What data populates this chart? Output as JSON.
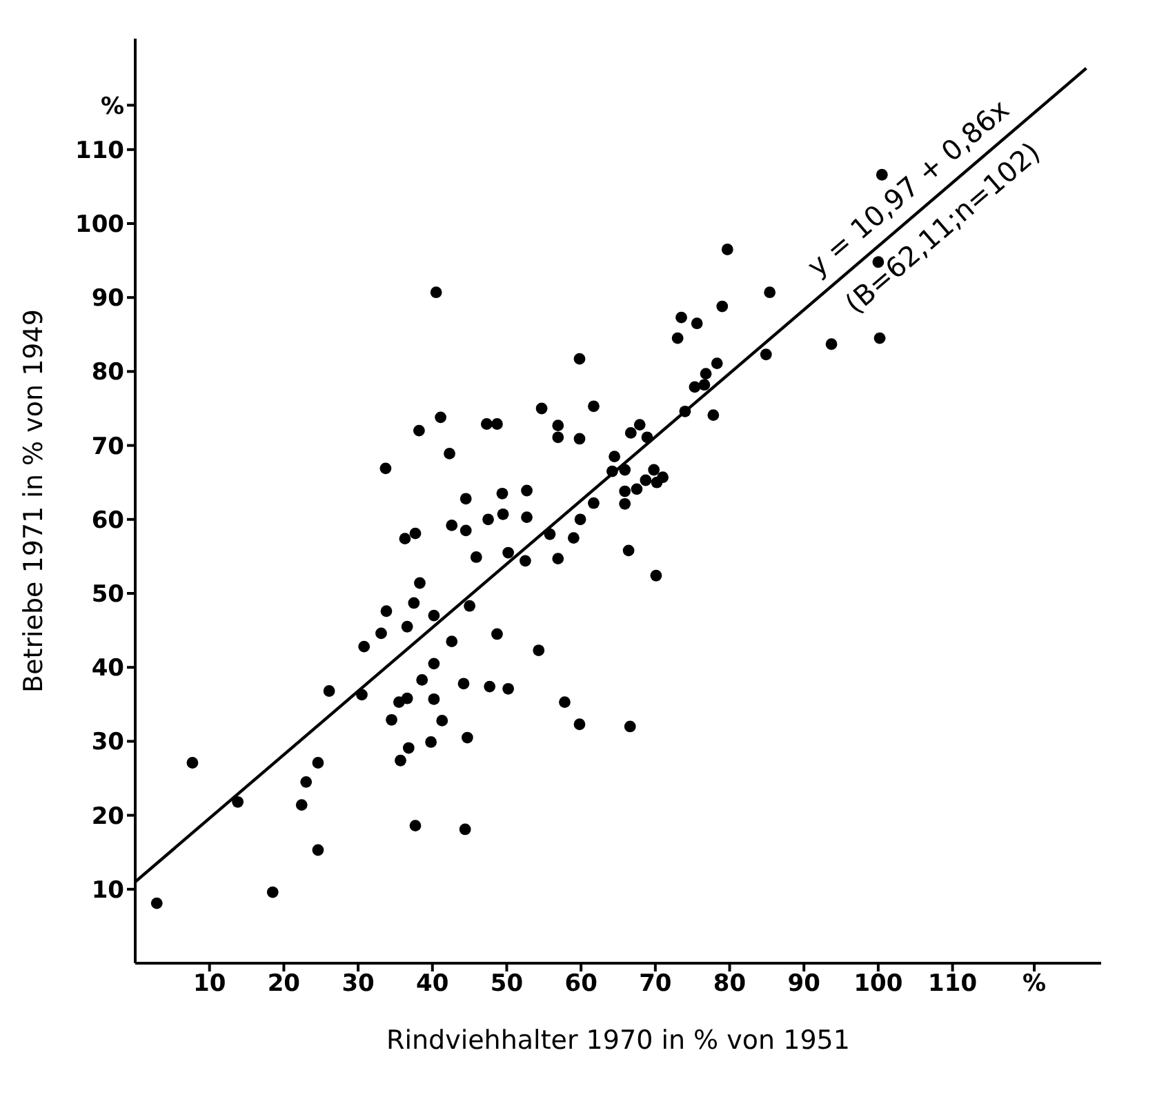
{
  "chart_data": {
    "type": "scatter",
    "xlabel": "Rindviehhalter 1970 in % von 1951",
    "ylabel": "Betriebe 1971 in % von 1949",
    "xlim": [
      0,
      130
    ],
    "ylim": [
      0,
      125
    ],
    "xticks": [
      10,
      20,
      30,
      40,
      50,
      60,
      70,
      80,
      90,
      100,
      110,
      {
        "value": 121,
        "label": "%"
      }
    ],
    "yticks": [
      10,
      20,
      30,
      40,
      50,
      60,
      70,
      80,
      90,
      100,
      110,
      {
        "value": 116,
        "label": "%"
      }
    ],
    "grid": false,
    "legend": false,
    "marker": "circle",
    "annotations": [
      "y = 10,97 + 0,86x",
      "(B=62,11;n=102)"
    ],
    "series": [
      {
        "color": "#000000",
        "x": [
          2.9,
          7.7,
          13.8,
          18.5,
          22.4,
          23.0,
          24.6,
          24.6,
          26.1,
          30.5,
          30.8,
          33.1,
          33.7,
          33.8,
          34.5,
          35.5,
          35.7,
          36.3,
          36.6,
          36.6,
          36.8,
          37.5,
          37.7,
          37.7,
          38.2,
          38.3,
          38.6,
          39.8,
          40.2,
          40.2,
          40.2,
          40.5,
          41.1,
          41.3,
          42.3,
          42.6,
          42.6,
          44.2,
          44.4,
          44.5,
          44.5,
          44.7,
          45.0,
          45.9,
          47.3,
          47.7,
          47.5,
          48.7,
          48.7,
          49.4,
          49.5,
          50.2,
          50.2,
          52.5,
          52.7,
          52.7,
          54.3,
          54.7,
          55.8,
          56.9,
          56.9,
          56.9,
          57.8,
          59.0,
          59.8,
          59.8,
          59.9,
          59.8,
          61.7,
          61.7,
          64.2,
          64.5,
          65.9,
          65.9,
          65.9,
          66.4,
          66.6,
          66.7,
          67.5,
          67.9,
          68.7,
          68.9,
          69.8,
          70.1,
          70.2,
          71.0,
          73.0,
          73.5,
          74.0,
          75.3,
          75.6,
          76.6,
          76.8,
          77.8,
          78.3,
          79.0,
          79.7,
          84.9,
          85.4,
          93.7,
          100.0,
          100.2,
          100.5
        ],
        "values": [
          8.1,
          27.1,
          21.8,
          9.6,
          21.4,
          24.5,
          27.1,
          15.3,
          36.8,
          36.3,
          42.8,
          44.6,
          66.9,
          47.6,
          32.9,
          35.3,
          27.4,
          57.4,
          45.5,
          35.8,
          29.1,
          48.7,
          18.6,
          58.1,
          72.0,
          51.4,
          38.3,
          29.9,
          47.0,
          40.5,
          35.7,
          90.7,
          73.8,
          32.8,
          68.9,
          59.2,
          43.5,
          37.8,
          18.1,
          62.8,
          58.5,
          30.5,
          48.3,
          54.9,
          72.9,
          37.4,
          60.0,
          72.9,
          44.5,
          63.5,
          60.7,
          55.5,
          37.1,
          54.4,
          63.9,
          60.3,
          42.3,
          75.0,
          58.0,
          72.7,
          71.1,
          54.7,
          35.3,
          57.5,
          81.7,
          70.9,
          60.0,
          32.3,
          75.3,
          62.2,
          66.5,
          68.5,
          66.7,
          63.8,
          62.1,
          55.8,
          32.0,
          71.7,
          64.1,
          72.8,
          65.3,
          71.1,
          66.7,
          52.4,
          65.0,
          65.7,
          84.5,
          87.3,
          74.6,
          77.9,
          86.5,
          78.2,
          79.7,
          74.1,
          81.1,
          88.8,
          96.5,
          82.3,
          90.7,
          83.7,
          94.8,
          84.5,
          106.6
        ]
      },
      {
        "type": "line",
        "marker": "none",
        "color": "#000000",
        "x": [
          0,
          128
        ],
        "values": [
          11,
          121
        ]
      }
    ]
  }
}
